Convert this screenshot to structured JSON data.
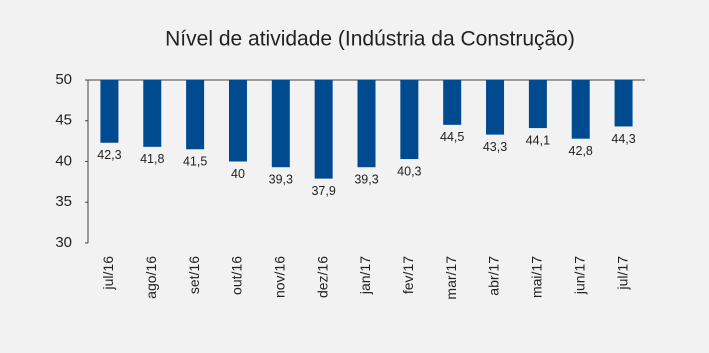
{
  "chart_data": {
    "type": "bar",
    "title": "Nível de atividade (Indústria da Construção)",
    "categories": [
      "jul/16",
      "ago/16",
      "set/16",
      "out/16",
      "nov/16",
      "dez/16",
      "jan/17",
      "fev/17",
      "mar/17",
      "abr/17",
      "mai/17",
      "jun/17",
      "jul/17"
    ],
    "values": [
      42.3,
      41.8,
      41.5,
      40,
      39.3,
      37.9,
      39.3,
      40.3,
      44.5,
      43.3,
      44.1,
      42.8,
      44.3
    ],
    "value_labels": [
      "42,3",
      "41,8",
      "41,5",
      "40",
      "39,3",
      "37,9",
      "39,3",
      "40,3",
      "44,5",
      "43,3",
      "44,1",
      "42,8",
      "44,3"
    ],
    "color": "#004a8f",
    "ylim": [
      30,
      50
    ],
    "yticks": [
      30,
      35,
      40,
      45,
      50
    ],
    "grid": false
  }
}
